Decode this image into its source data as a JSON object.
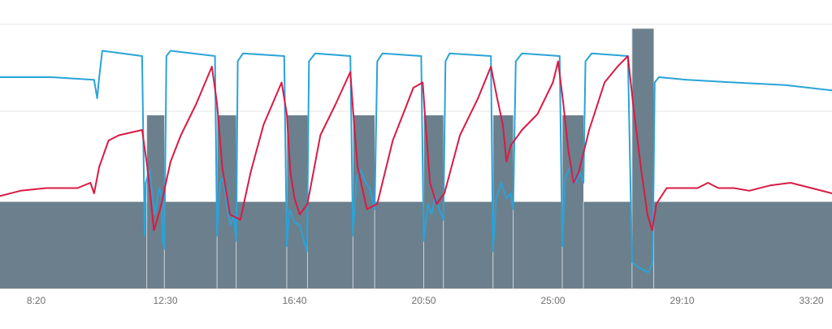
{
  "chart_data": {
    "type": "line",
    "title": "",
    "xlabel": "",
    "ylabel": "",
    "x_unit": "elapsed time (m:ss)",
    "xlim_seconds": [
      430,
      2040
    ],
    "xlim": [
      "7:10",
      "34:00"
    ],
    "x_tick_labels": [
      "8:20",
      "12:30",
      "16:40",
      "20:50",
      "25:00",
      "29:10",
      "33:20"
    ],
    "x_ticks_seconds": [
      500,
      750,
      1000,
      1250,
      1500,
      1750,
      2000
    ],
    "grid": {
      "horizontal": true,
      "vertical": false
    },
    "legend": "none",
    "colors": {
      "bars": "#6c7f8c",
      "blue_series": "#2aa3d8",
      "red_series": "#d81b45",
      "grid": "#e6e6e6",
      "axis": "#d0d0d0"
    },
    "bars": {
      "name": "",
      "levels": {
        "base": 1,
        "mid": 2,
        "high": 3
      },
      "ylim": [
        0,
        3.05
      ],
      "steps": [
        {
          "from": 430,
          "to": 714,
          "level": 1
        },
        {
          "from": 714,
          "to": 748,
          "level": 2
        },
        {
          "from": 748,
          "to": 850,
          "level": 1
        },
        {
          "from": 850,
          "to": 887,
          "level": 2
        },
        {
          "from": 887,
          "to": 985,
          "level": 1
        },
        {
          "from": 985,
          "to": 1025,
          "level": 2
        },
        {
          "from": 1025,
          "to": 1113,
          "level": 1
        },
        {
          "from": 1113,
          "to": 1155,
          "level": 2
        },
        {
          "from": 1155,
          "to": 1250,
          "level": 1
        },
        {
          "from": 1250,
          "to": 1288,
          "level": 2
        },
        {
          "from": 1288,
          "to": 1384,
          "level": 1
        },
        {
          "from": 1384,
          "to": 1423,
          "level": 2
        },
        {
          "from": 1423,
          "to": 1518,
          "level": 1
        },
        {
          "from": 1518,
          "to": 1559,
          "level": 2
        },
        {
          "from": 1559,
          "to": 1653,
          "level": 1
        },
        {
          "from": 1653,
          "to": 1695,
          "level": 3
        },
        {
          "from": 1695,
          "to": 2040,
          "level": 1
        }
      ]
    },
    "series": [
      {
        "name": "",
        "color": "#2aa3d8",
        "ylim": [
          0,
          100
        ],
        "points": [
          [
            430,
            80
          ],
          [
            480,
            80
          ],
          [
            530,
            80
          ],
          [
            612,
            79
          ],
          [
            618,
            72
          ],
          [
            622,
            80
          ],
          [
            628,
            90
          ],
          [
            705,
            88
          ],
          [
            710,
            20
          ],
          [
            712,
            40
          ],
          [
            715,
            42
          ],
          [
            720,
            45
          ],
          [
            725,
            35
          ],
          [
            730,
            28
          ],
          [
            738,
            38
          ],
          [
            742,
            36
          ],
          [
            745,
            18
          ],
          [
            748,
            15
          ],
          [
            752,
            88
          ],
          [
            760,
            90
          ],
          [
            846,
            88
          ],
          [
            850,
            20
          ],
          [
            856,
            40
          ],
          [
            862,
            42
          ],
          [
            870,
            30
          ],
          [
            876,
            24
          ],
          [
            882,
            28
          ],
          [
            887,
            18
          ],
          [
            890,
            86
          ],
          [
            900,
            89
          ],
          [
            980,
            88
          ],
          [
            985,
            16
          ],
          [
            990,
            30
          ],
          [
            1000,
            25
          ],
          [
            1010,
            24
          ],
          [
            1018,
            18
          ],
          [
            1024,
            14
          ],
          [
            1028,
            86
          ],
          [
            1040,
            89
          ],
          [
            1108,
            88
          ],
          [
            1113,
            20
          ],
          [
            1120,
            42
          ],
          [
            1128,
            45
          ],
          [
            1138,
            40
          ],
          [
            1145,
            38
          ],
          [
            1155,
            30
          ],
          [
            1160,
            86
          ],
          [
            1170,
            89
          ],
          [
            1245,
            88
          ],
          [
            1250,
            18
          ],
          [
            1258,
            32
          ],
          [
            1265,
            28
          ],
          [
            1272,
            35
          ],
          [
            1280,
            30
          ],
          [
            1288,
            26
          ],
          [
            1292,
            86
          ],
          [
            1300,
            89
          ],
          [
            1380,
            88
          ],
          [
            1384,
            14
          ],
          [
            1390,
            34
          ],
          [
            1400,
            40
          ],
          [
            1410,
            34
          ],
          [
            1418,
            36
          ],
          [
            1423,
            30
          ],
          [
            1428,
            86
          ],
          [
            1440,
            89
          ],
          [
            1513,
            88
          ],
          [
            1518,
            16
          ],
          [
            1524,
            42
          ],
          [
            1534,
            46
          ],
          [
            1544,
            40
          ],
          [
            1552,
            44
          ],
          [
            1559,
            40
          ],
          [
            1563,
            86
          ],
          [
            1575,
            89
          ],
          [
            1645,
            88
          ],
          [
            1653,
            10
          ],
          [
            1665,
            8
          ],
          [
            1685,
            6
          ],
          [
            1693,
            10
          ],
          [
            1697,
            78
          ],
          [
            1705,
            80
          ],
          [
            1760,
            79
          ],
          [
            1850,
            78
          ],
          [
            1950,
            77
          ],
          [
            2040,
            75
          ]
        ]
      },
      {
        "name": "",
        "color": "#d81b45",
        "ylim": [
          0,
          100
        ],
        "points": [
          [
            430,
            35
          ],
          [
            470,
            37
          ],
          [
            520,
            38
          ],
          [
            580,
            38
          ],
          [
            605,
            40
          ],
          [
            612,
            36
          ],
          [
            622,
            46
          ],
          [
            640,
            56
          ],
          [
            660,
            58
          ],
          [
            705,
            60
          ],
          [
            715,
            46
          ],
          [
            728,
            22
          ],
          [
            740,
            30
          ],
          [
            760,
            48
          ],
          [
            780,
            58
          ],
          [
            810,
            70
          ],
          [
            840,
            84
          ],
          [
            850,
            70
          ],
          [
            860,
            46
          ],
          [
            875,
            28
          ],
          [
            895,
            26
          ],
          [
            915,
            44
          ],
          [
            940,
            62
          ],
          [
            975,
            78
          ],
          [
            985,
            66
          ],
          [
            992,
            44
          ],
          [
            1000,
            34
          ],
          [
            1010,
            28
          ],
          [
            1025,
            32
          ],
          [
            1050,
            58
          ],
          [
            1080,
            70
          ],
          [
            1108,
            82
          ],
          [
            1113,
            68
          ],
          [
            1122,
            46
          ],
          [
            1140,
            30
          ],
          [
            1160,
            32
          ],
          [
            1190,
            56
          ],
          [
            1230,
            76
          ],
          [
            1248,
            78
          ],
          [
            1253,
            64
          ],
          [
            1262,
            40
          ],
          [
            1275,
            32
          ],
          [
            1290,
            36
          ],
          [
            1320,
            58
          ],
          [
            1355,
            72
          ],
          [
            1380,
            84
          ],
          [
            1392,
            72
          ],
          [
            1403,
            62
          ],
          [
            1410,
            48
          ],
          [
            1418,
            54
          ],
          [
            1440,
            60
          ],
          [
            1470,
            66
          ],
          [
            1500,
            78
          ],
          [
            1510,
            86
          ],
          [
            1520,
            70
          ],
          [
            1530,
            52
          ],
          [
            1540,
            40
          ],
          [
            1550,
            44
          ],
          [
            1570,
            60
          ],
          [
            1600,
            78
          ],
          [
            1625,
            84
          ],
          [
            1645,
            88
          ],
          [
            1655,
            70
          ],
          [
            1670,
            46
          ],
          [
            1683,
            28
          ],
          [
            1692,
            22
          ],
          [
            1700,
            32
          ],
          [
            1720,
            38
          ],
          [
            1745,
            38
          ],
          [
            1780,
            38
          ],
          [
            1800,
            40
          ],
          [
            1820,
            38
          ],
          [
            1850,
            38
          ],
          [
            1880,
            37
          ],
          [
            1920,
            39
          ],
          [
            1960,
            40
          ],
          [
            2000,
            38
          ],
          [
            2040,
            36
          ]
        ]
      }
    ]
  }
}
